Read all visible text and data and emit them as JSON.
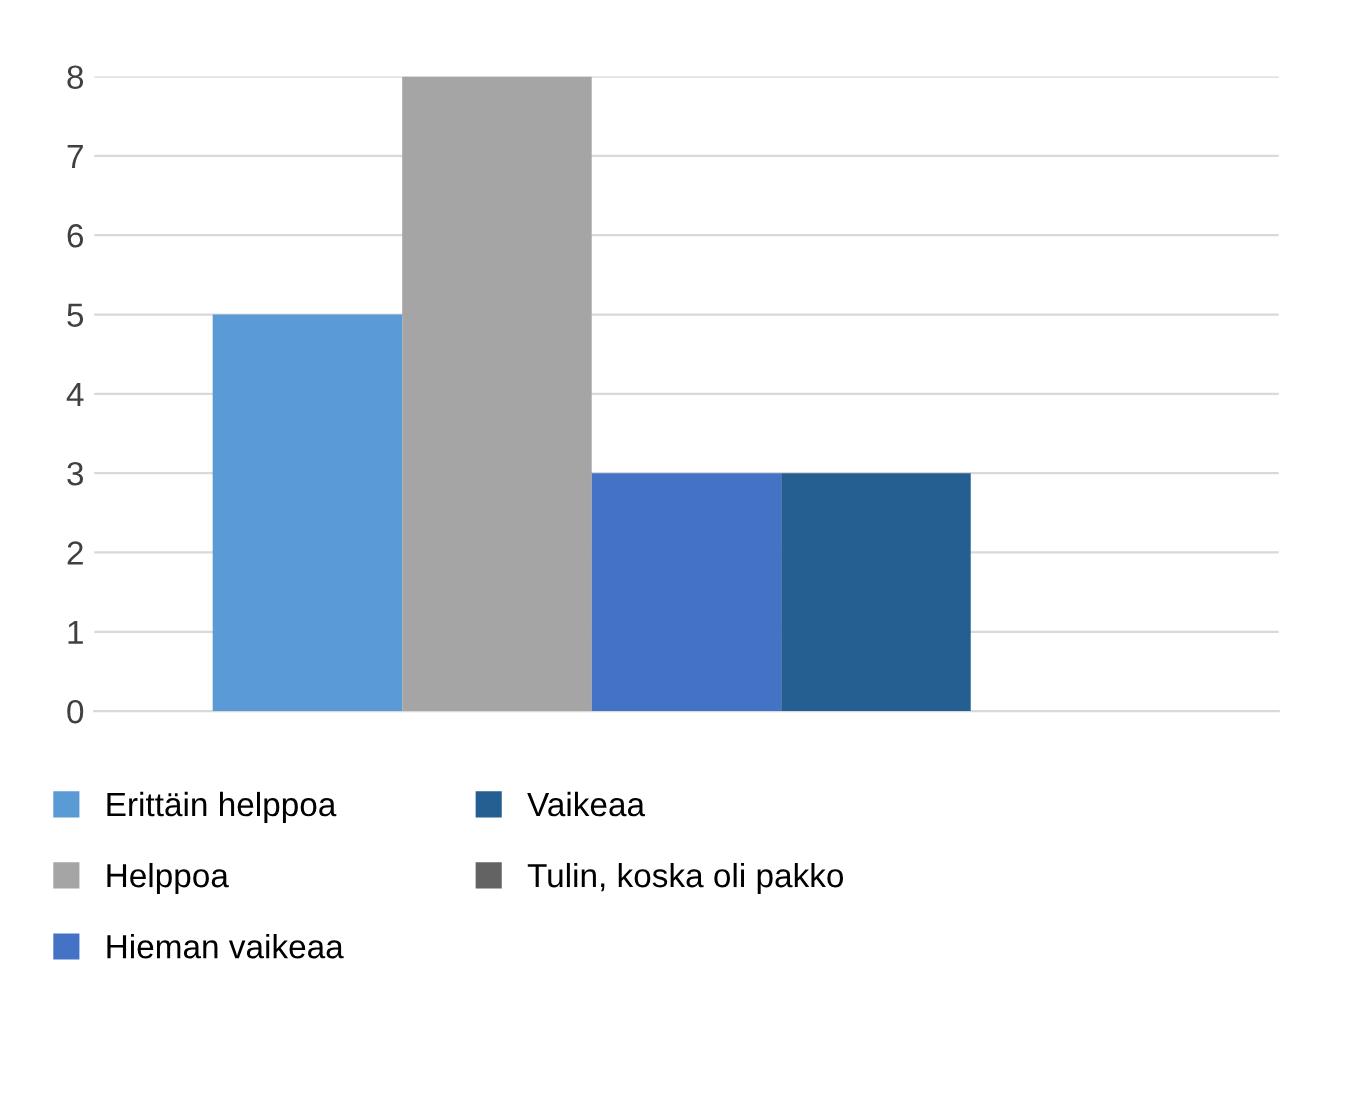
{
  "chart_data": {
    "type": "bar",
    "categories": [
      null
    ],
    "series": [
      {
        "name": "Erittäin helppoa",
        "color": "#5b9bd5",
        "values": [
          5
        ]
      },
      {
        "name": "Helppoa",
        "color": "#a5a5a5",
        "values": [
          8
        ]
      },
      {
        "name": "Hieman vaikeaa",
        "color": "#4472c4",
        "values": [
          3
        ]
      },
      {
        "name": "Vaikeaa",
        "color": "#255e91",
        "values": [
          3
        ]
      },
      {
        "name": "Tulin, koska oli pakko",
        "color": "#636363",
        "values": [
          0
        ]
      }
    ],
    "ylim": [
      0,
      8
    ],
    "yticks": [
      0,
      1,
      2,
      3,
      4,
      5,
      6,
      7,
      8
    ],
    "grid": "y",
    "legend": "bottom"
  }
}
